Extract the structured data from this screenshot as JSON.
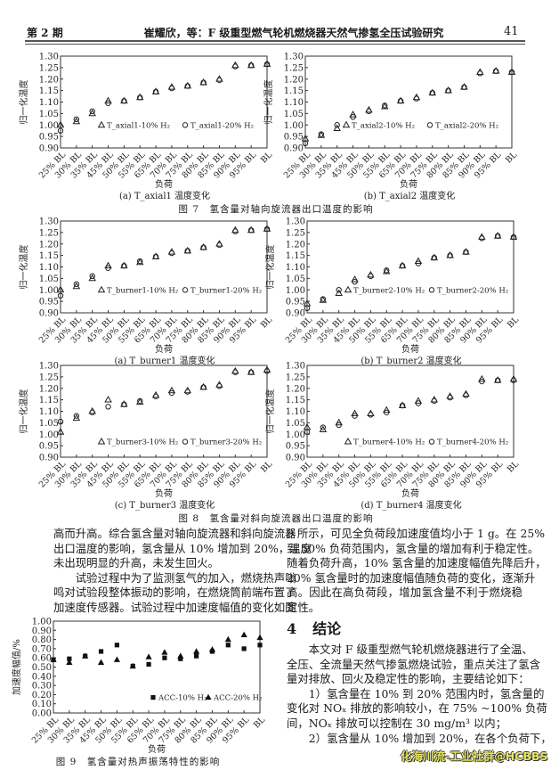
{
  "header": {
    "issue": "第 2 期",
    "title": "崔耀欣，等：F 级重型燃气轮机燃烧器天然气掺氢全压试验研究",
    "page_number": "41"
  },
  "fig7": {
    "caption": "图 7　氢含量对轴向旋流器出口温度的影响"
  },
  "fig8": {
    "caption": "图 8　氢含量对斜向旋流器出口温度的影响"
  },
  "fig9": {
    "caption": "图 9　氢含量对热声振荡特性的影响"
  },
  "chart_data": [
    {
      "type": "scatter",
      "subcaption": "(a)  T_axial1 温度变化",
      "xlabel": "负荷",
      "ylabel": "归一化温度",
      "ylim": [
        0.9,
        1.3
      ],
      "ystep": 0.05,
      "decimals": 2,
      "legend": "bottom-right",
      "categories": [
        "25% BL",
        "30% BL",
        "35% BL",
        "45% BL",
        "50% BL",
        "55% BL",
        "65% BL",
        "70% BL",
        "75% BL",
        "80% BL",
        "85% BL",
        "90% BL",
        "95% BL",
        "BL"
      ],
      "series": [
        {
          "name": "T_axial1-10% H₂",
          "marker": "open-triangle",
          "values": [
            1.0,
            1.015,
            1.05,
            1.105,
            1.105,
            1.12,
            1.145,
            1.165,
            1.17,
            1.185,
            1.2,
            1.26,
            1.26,
            1.265
          ]
        },
        {
          "name": "T_axial1-20% H₂",
          "marker": "open-circle",
          "values": [
            0.975,
            1.025,
            1.06,
            1.095,
            1.105,
            1.12,
            1.145,
            1.16,
            1.17,
            1.185,
            1.195,
            1.255,
            1.26,
            1.265
          ]
        }
      ]
    },
    {
      "type": "scatter",
      "subcaption": "(b)  T_axial2 温度变化",
      "xlabel": "负荷",
      "ylabel": "归一化温度",
      "ylim": [
        0.9,
        1.3
      ],
      "ystep": 0.05,
      "decimals": 2,
      "legend": "bottom-right",
      "categories": [
        "25% BL",
        "30% BL",
        "35% BL",
        "45% BL",
        "50% BL",
        "55% BL",
        "65% BL",
        "70% BL",
        "75% BL",
        "80% BL",
        "85% BL",
        "90% BL",
        "95% BL",
        "BL"
      ],
      "series": [
        {
          "name": "T_axial2-10% H₂",
          "marker": "open-triangle",
          "values": [
            0.94,
            0.955,
            0.985,
            1.045,
            1.065,
            1.08,
            1.105,
            1.12,
            1.14,
            1.15,
            1.165,
            1.23,
            1.235,
            1.23
          ]
        },
        {
          "name": "T_axial2-20% H₂",
          "marker": "open-circle",
          "values": [
            0.92,
            0.96,
            1.0,
            1.035,
            1.06,
            1.085,
            1.105,
            1.115,
            1.14,
            1.15,
            1.165,
            1.225,
            1.235,
            1.23
          ]
        }
      ]
    },
    {
      "type": "scatter",
      "subcaption": "(a)  T_burner1 温度变化",
      "xlabel": "负荷",
      "ylabel": "归一化温度",
      "ylim": [
        0.9,
        1.3
      ],
      "ystep": 0.05,
      "decimals": 2,
      "legend": "bottom-right",
      "categories": [
        "25% BL",
        "30% BL",
        "35% BL",
        "45% BL",
        "50% BL",
        "55% BL",
        "65% BL",
        "70% BL",
        "75% BL",
        "80% BL",
        "85% BL",
        "90% BL",
        "95% BL",
        "BL"
      ],
      "series": [
        {
          "name": "T_burner1-10% H₂",
          "marker": "open-triangle",
          "values": [
            1.0,
            1.015,
            1.05,
            1.105,
            1.105,
            1.12,
            1.145,
            1.165,
            1.17,
            1.185,
            1.2,
            1.26,
            1.26,
            1.265
          ]
        },
        {
          "name": "T_burner1-20% H₂",
          "marker": "open-circle",
          "values": [
            0.975,
            1.025,
            1.06,
            1.095,
            1.105,
            1.125,
            1.145,
            1.16,
            1.17,
            1.185,
            1.195,
            1.255,
            1.26,
            1.265
          ]
        }
      ]
    },
    {
      "type": "scatter",
      "subcaption": "(b)  T_burner2 温度变化",
      "xlabel": "负荷",
      "ylabel": "归一化温度",
      "ylim": [
        0.9,
        1.3
      ],
      "ystep": 0.05,
      "decimals": 2,
      "legend": "bottom-right",
      "categories": [
        "25% BL",
        "30% BL",
        "35% BL",
        "45% BL",
        "50% BL",
        "55% BL",
        "65% BL",
        "70% BL",
        "75% BL",
        "80% BL",
        "85% BL",
        "90% BL",
        "95% BL",
        "BL"
      ],
      "series": [
        {
          "name": "T_burner2-10% H₂",
          "marker": "open-triangle",
          "values": [
            0.94,
            0.955,
            0.985,
            1.045,
            1.065,
            1.08,
            1.105,
            1.125,
            1.14,
            1.15,
            1.165,
            1.23,
            1.235,
            1.23
          ]
        },
        {
          "name": "T_burner2-20% H₂",
          "marker": "open-circle",
          "values": [
            0.92,
            0.96,
            1.0,
            1.035,
            1.06,
            1.085,
            1.105,
            1.115,
            1.14,
            1.15,
            1.165,
            1.225,
            1.235,
            1.23
          ]
        }
      ]
    },
    {
      "type": "scatter",
      "subcaption": "(c)  T_burner3 温度变化",
      "xlabel": "负荷",
      "ylabel": "归一化温度",
      "ylim": [
        0.9,
        1.3
      ],
      "ystep": 0.05,
      "decimals": 2,
      "legend": "bottom-right",
      "categories": [
        "25% BL",
        "30% BL",
        "35% BL",
        "45% BL",
        "50% BL",
        "55% BL",
        "65% BL",
        "70% BL",
        "75% BL",
        "80% BL",
        "85% BL",
        "90% BL",
        "95% BL",
        "BL"
      ],
      "series": [
        {
          "name": "T_burner3-10% H₂",
          "marker": "open-triangle",
          "values": [
            1.01,
            1.07,
            1.1,
            1.15,
            1.13,
            1.14,
            1.17,
            1.19,
            1.19,
            1.205,
            1.215,
            1.275,
            1.27,
            1.28
          ]
        },
        {
          "name": "T_burner3-20% H₂",
          "marker": "open-circle",
          "values": [
            1.055,
            1.08,
            1.095,
            1.12,
            1.13,
            1.145,
            1.165,
            1.18,
            1.185,
            1.205,
            1.21,
            1.27,
            1.27,
            1.275
          ]
        }
      ]
    },
    {
      "type": "scatter",
      "subcaption": "(d)  T_burner4 温度变化",
      "xlabel": "负荷",
      "ylabel": "归一化温度",
      "ylim": [
        0.9,
        1.3
      ],
      "ystep": 0.05,
      "decimals": 2,
      "legend": "bottom-right",
      "categories": [
        "25% BL",
        "30% BL",
        "35% BL",
        "45% BL",
        "50% BL",
        "55% BL",
        "65% BL",
        "70% BL",
        "75% BL",
        "80% BL",
        "85% BL",
        "90% BL",
        "95% BL",
        "BL"
      ],
      "series": [
        {
          "name": "T_burner4-10% H₂",
          "marker": "open-triangle",
          "values": [
            1.03,
            1.02,
            1.05,
            1.09,
            1.09,
            1.105,
            1.125,
            1.145,
            1.15,
            1.165,
            1.175,
            1.24,
            1.235,
            1.24
          ]
        },
        {
          "name": "T_burner4-20% H₂",
          "marker": "open-circle",
          "values": [
            1.01,
            1.03,
            1.04,
            1.08,
            1.085,
            1.095,
            1.125,
            1.135,
            1.145,
            1.16,
            1.17,
            1.23,
            1.235,
            1.235
          ]
        }
      ]
    },
    {
      "type": "scatter",
      "subcaption": "",
      "xlabel": "负荷",
      "ylabel": "加速度幅值/%",
      "ylim": [
        0.0,
        1.0
      ],
      "ystep": 0.1,
      "decimals": 2,
      "legend": "bottom-right",
      "categories": [
        "25% BL",
        "30% BL",
        "35% BL",
        "45% BL",
        "50% BL",
        "55% BL",
        "65% BL",
        "70% BL",
        "75% BL",
        "80% BL",
        "85% BL",
        "90% BL",
        "95% BL",
        "BL"
      ],
      "series": [
        {
          "name": "ACC-10% H₂",
          "marker": "filled-square",
          "values": [
            0.58,
            0.59,
            0.62,
            0.67,
            0.74,
            0.51,
            0.53,
            0.6,
            0.59,
            0.62,
            0.67,
            0.74,
            0.7,
            0.74
          ]
        },
        {
          "name": "ACC-20% H₂",
          "marker": "filled-triangle",
          "values": [
            0.58,
            0.55,
            0.62,
            0.55,
            0.58,
            0.51,
            0.61,
            0.66,
            0.62,
            0.67,
            0.69,
            0.8,
            0.85,
            0.82
          ]
        }
      ]
    }
  ],
  "left_column": [
    {
      "indent": false,
      "lines": [
        "高而升高。综合氢含量对轴向旋流器和斜向旋流器",
        "出口温度的影响，氢含量从 10% 增加到 20%，温度",
        "未出现明显的升高，未发生回火。"
      ]
    },
    {
      "indent": true,
      "lines": [
        "试验过程中为了监测氢气的加入，燃烧热声嗡",
        "鸣对试验段整体振动的影响，在燃烧筒前端布置了",
        "加速度传感器。试验过程中加速度幅值的变化如图"
      ],
      "continues": true
    }
  ],
  "right_column_top": [
    {
      "indent": false,
      "lines": [
        "9 所示，可见全负荷段加速度值均小于 1 g。在 25%",
        "到 50% 负荷范围内，氢含量的增加有利于稳定性。",
        "随着负荷升高，10% 氢含量的加速度幅值先降后升，",
        "20% 氢含量时的加速度幅值随负荷的变化，逐渐升",
        "高。因此在高负荷段，增加氢含量不利于燃烧稳",
        "定性。"
      ]
    }
  ],
  "section": {
    "number": "4",
    "title": "结论"
  },
  "right_column_bottom": [
    {
      "indent": true,
      "lines": [
        "本文对 F 级重型燃气轮机燃烧器进行了全温、",
        "全压、全流量天然气掺氢燃烧试验，重点关注了氢含",
        "量对排放、回火及稳定性的影响，主要结论如下："
      ]
    },
    {
      "indent": true,
      "lines": [
        "1）氢含量在 10% 到 20% 范围内时，氢含量的",
        "变化对 NOₓ 排放的影响较小，在 75% ~100% 负荷",
        "间，NOₓ 排放可以控制在 30 mg/m³ 以内；"
      ]
    },
    {
      "indent": true,
      "lines": [
        "2）氢含量从 10% 增加到 20%，在各个负荷下，"
      ],
      "continues": true
    }
  ],
  "watermark": "化海川流-工业社群@HCBBS"
}
